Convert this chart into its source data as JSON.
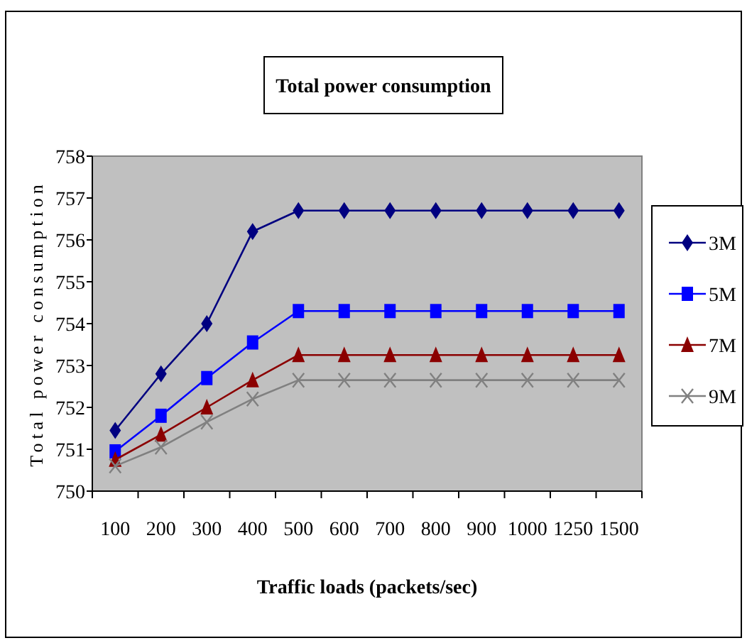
{
  "chart_data": {
    "type": "line",
    "title": "Total power consumption",
    "xlabel": "Traffic loads (packets/sec)",
    "ylabel": "Total power consumption",
    "categories": [
      "100",
      "200",
      "300",
      "400",
      "500",
      "600",
      "700",
      "800",
      "900",
      "1000",
      "1250",
      "1500"
    ],
    "ylim": [
      750,
      758
    ],
    "yticks": [
      750,
      751,
      752,
      753,
      754,
      755,
      756,
      757,
      758
    ],
    "grid": false,
    "legend": "right",
    "series": [
      {
        "name": "3M",
        "color": "#000080",
        "marker": "diamond",
        "values": [
          751.45,
          752.8,
          754.0,
          756.2,
          756.7,
          756.7,
          756.7,
          756.7,
          756.7,
          756.7,
          756.7,
          756.7
        ]
      },
      {
        "name": "5M",
        "color": "#0000ff",
        "marker": "square",
        "values": [
          750.95,
          751.8,
          752.7,
          753.55,
          754.3,
          754.3,
          754.3,
          754.3,
          754.3,
          754.3,
          754.3,
          754.3
        ]
      },
      {
        "name": "7M",
        "color": "#8b0000",
        "marker": "triangle",
        "values": [
          750.75,
          751.35,
          752.0,
          752.65,
          753.25,
          753.25,
          753.25,
          753.25,
          753.25,
          753.25,
          753.25,
          753.25
        ]
      },
      {
        "name": "9M",
        "color": "#808080",
        "marker": "cross",
        "values": [
          750.6,
          751.05,
          751.65,
          752.2,
          752.65,
          752.65,
          752.65,
          752.65,
          752.65,
          752.65,
          752.65,
          752.65
        ]
      }
    ]
  }
}
